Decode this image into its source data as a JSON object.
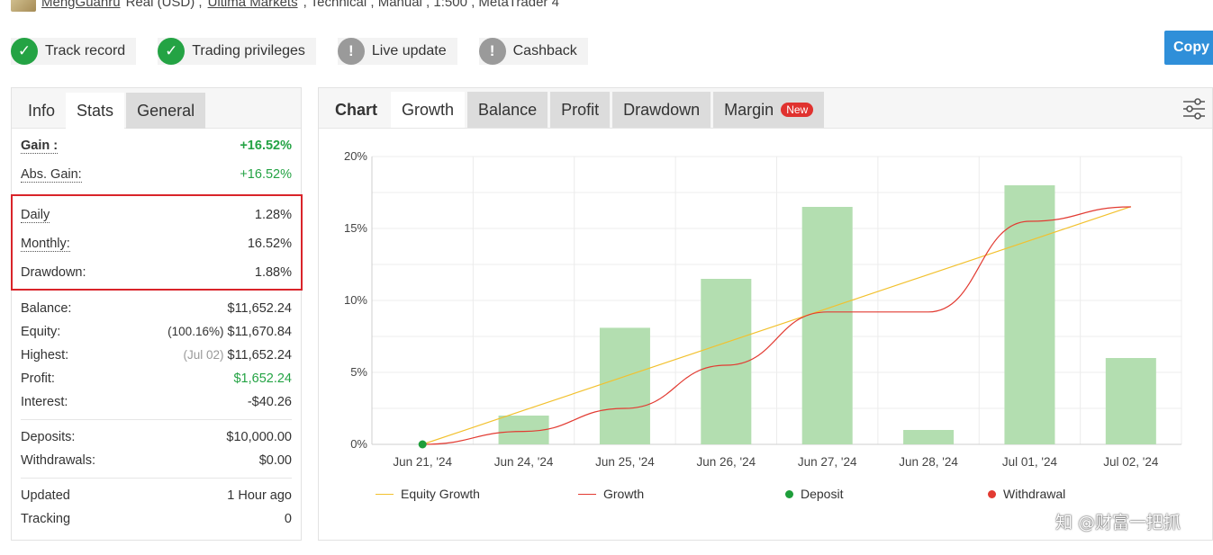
{
  "header": {
    "user": "MengGuanru",
    "account_type": " Real (USD) , ",
    "broker": "Ultima Markets",
    "details": " , Technical , Manual , 1:500 , MetaTrader 4"
  },
  "badges": [
    {
      "label": "Track record",
      "state": "ok",
      "icon": "check-icon"
    },
    {
      "label": "Trading privileges",
      "state": "ok",
      "icon": "check-icon"
    },
    {
      "label": "Live update",
      "state": "warn",
      "icon": "exclamation-icon"
    },
    {
      "label": "Cashback",
      "state": "warn",
      "icon": "exclamation-icon"
    }
  ],
  "copy_button": "Copy",
  "left_tabs": {
    "info": "Info",
    "stats": "Stats",
    "general": "General"
  },
  "stats": {
    "gain_label": "Gain :",
    "gain_value": "+16.52%",
    "abs_gain_label": "Abs. Gain:",
    "abs_gain_value": "+16.52%",
    "daily_label": "Daily",
    "daily_value": "1.28%",
    "monthly_label": "Monthly:",
    "monthly_value": "16.52%",
    "drawdown_label": "Drawdown:",
    "drawdown_value": "1.88%",
    "balance_label": "Balance:",
    "balance_value": "$11,652.24",
    "equity_label": "Equity:",
    "equity_pct": "(100.16%)",
    "equity_value": "$11,670.84",
    "highest_label": "Highest:",
    "highest_date": "(Jul 02)",
    "highest_value": "$11,652.24",
    "profit_label": "Profit:",
    "profit_value": "$1,652.24",
    "interest_label": "Interest:",
    "interest_value": "-$40.26",
    "deposits_label": "Deposits:",
    "deposits_value": "$10,000.00",
    "withdrawals_label": "Withdrawals:",
    "withdrawals_value": "$0.00",
    "updated_label": "Updated",
    "updated_value": "1 Hour ago",
    "tracking_label": "Tracking",
    "tracking_value": "0"
  },
  "chart_tabs": {
    "chart": "Chart",
    "growth": "Growth",
    "balance": "Balance",
    "profit": "Profit",
    "drawdown": "Drawdown",
    "margin": "Margin",
    "new_badge": "New"
  },
  "chart_data": {
    "type": "bar",
    "categories": [
      "Jun 21, '24",
      "Jun 24, '24",
      "Jun 25, '24",
      "Jun 26, '24",
      "Jun 27, '24",
      "Jun 28, '24",
      "Jul 01, '24",
      "Jul 02, '24"
    ],
    "series": [
      {
        "name": "Growth",
        "kind": "bar",
        "values": [
          0,
          2.0,
          8.1,
          11.5,
          16.5,
          1.0,
          18.0,
          6.0
        ],
        "color": "#b3deb0"
      },
      {
        "name": "Growth",
        "kind": "line",
        "values": [
          0,
          0.9,
          2.5,
          5.5,
          9.2,
          9.2,
          15.5,
          16.5
        ],
        "color": "#e23b32"
      },
      {
        "name": "Equity Growth",
        "kind": "line",
        "values": [
          0,
          2.36,
          4.72,
          7.08,
          9.44,
          11.8,
          14.16,
          16.52
        ],
        "color": "#f2c12e"
      }
    ],
    "deposit_points": [
      {
        "x": "Jun 21, '24",
        "y": 0
      }
    ],
    "y_ticks": [
      "0%",
      "5%",
      "10%",
      "15%",
      "20%"
    ],
    "ylim": [
      0,
      20
    ],
    "grid": true,
    "legend": [
      {
        "label": "Equity Growth",
        "type": "line",
        "color": "#f2c12e"
      },
      {
        "label": "Growth",
        "type": "line",
        "color": "#e23b32"
      },
      {
        "label": "Deposit",
        "type": "dot",
        "color": "#1e9e3a"
      },
      {
        "label": "Withdrawal",
        "type": "dot",
        "color": "#e23b32"
      }
    ],
    "legend_position": "bottom"
  },
  "watermark": "知 @财富一把抓"
}
